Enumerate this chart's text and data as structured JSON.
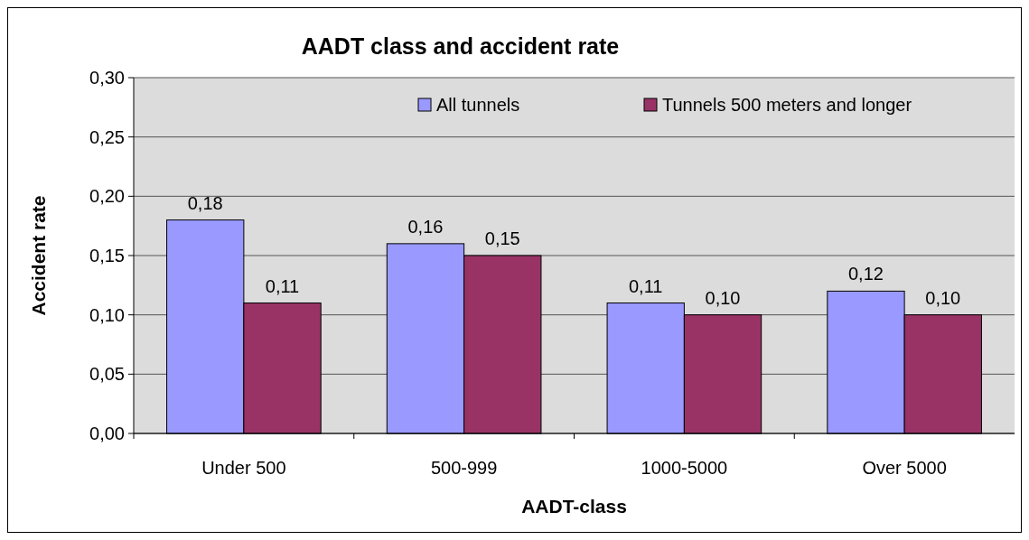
{
  "chart_data": {
    "type": "bar",
    "title": "AADT class and accident rate",
    "xlabel": "AADT-class",
    "ylabel": "Accident rate",
    "categories": [
      "Under 500",
      "500-999",
      "1000-5000",
      "Over 5000"
    ],
    "series": [
      {
        "name": "All tunnels",
        "color": "#9999ff",
        "values": [
          0.18,
          0.16,
          0.11,
          0.12
        ],
        "value_labels": [
          "0,18",
          "0,16",
          "0,11",
          "0,12"
        ]
      },
      {
        "name": "Tunnels 500 meters and longer",
        "color": "#993366",
        "values": [
          0.11,
          0.15,
          0.1,
          0.1
        ],
        "value_labels": [
          "0,11",
          "0,15",
          "0,10",
          "0,10"
        ]
      }
    ],
    "ylim": [
      0,
      0.3
    ],
    "yticks": [
      {
        "value": 0,
        "label": "0,00"
      },
      {
        "value": 0.05,
        "label": "0,05"
      },
      {
        "value": 0.1,
        "label": "0,10"
      },
      {
        "value": 0.15,
        "label": "0,15"
      },
      {
        "value": 0.2,
        "label": "0,20"
      },
      {
        "value": 0.25,
        "label": "0,25"
      },
      {
        "value": 0.3,
        "label": "0,30"
      }
    ],
    "grid": "y",
    "legend": "top right"
  }
}
